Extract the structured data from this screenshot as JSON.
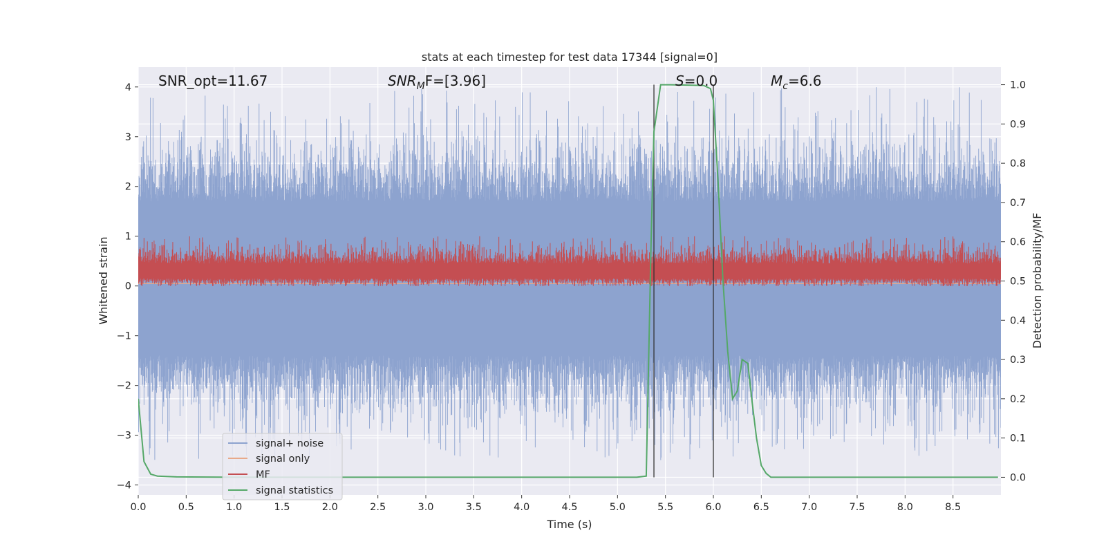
{
  "chart_data": {
    "type": "line",
    "title": "stats at each timestep for test data 17344 [signal=0]",
    "xlabel": "Time (s)",
    "ylabel_left": "Whitened strain",
    "ylabel_right": "Detection probability/MF",
    "xlim": [
      0.0,
      9.0
    ],
    "ylim_left": [
      -4.2,
      4.4
    ],
    "ylim_right": [
      -0.045,
      1.045
    ],
    "x_ticks": [
      "0.0",
      "0.5",
      "1.0",
      "1.5",
      "2.0",
      "2.5",
      "3.0",
      "3.5",
      "4.0",
      "4.5",
      "5.0",
      "5.5",
      "6.0",
      "6.5",
      "7.0",
      "7.5",
      "8.0",
      "8.5"
    ],
    "y_ticks_left": [
      "−4",
      "−3",
      "−2",
      "−1",
      "0",
      "1",
      "2",
      "3",
      "4"
    ],
    "y_ticks_right": [
      "0.0",
      "0.1",
      "0.2",
      "0.3",
      "0.4",
      "0.5",
      "0.6",
      "0.7",
      "0.8",
      "0.9",
      "1.0"
    ],
    "grid": true,
    "background_color": "#eaeaf2",
    "annotations": [
      {
        "id": "snr-opt",
        "text": "SNR_opt=11.67"
      },
      {
        "id": "snr-mf",
        "text": "SNR",
        "sub": "M",
        "suffix": "F=[3.96]"
      },
      {
        "id": "s-value",
        "text": "S",
        "suffix": "=0.0"
      },
      {
        "id": "mc-value",
        "text": "M",
        "sub": "c",
        "suffix": "=6.6"
      }
    ],
    "vertical_lines_x": [
      5.38,
      6.0
    ],
    "legend": {
      "placement": "lower-left",
      "entries": [
        {
          "label": "signal+ noise",
          "color": "#8da3cf"
        },
        {
          "label": "signal only",
          "color": "#e8a98a"
        },
        {
          "label": "MF",
          "color": "#c44e52"
        },
        {
          "label": "signal statistics",
          "color": "#55a868"
        }
      ]
    },
    "series": [
      {
        "name": "signal+ noise",
        "axis": "left",
        "style": "dense noise band",
        "color": "#8da3cf",
        "typical_range": [
          -1.4,
          1.7
        ],
        "peak_range": [
          -3.5,
          4.0
        ]
      },
      {
        "name": "signal only",
        "axis": "left",
        "color": "#e8a98a",
        "constant_value": 0.05
      },
      {
        "name": "MF",
        "axis": "left",
        "style": "dense noise band",
        "color": "#c44e52",
        "typical_range": [
          0.05,
          0.75
        ],
        "peak_range": [
          0.0,
          1.0
        ]
      },
      {
        "name": "signal statistics",
        "axis": "right",
        "color": "#55a868",
        "points": [
          [
            0.0,
            0.2
          ],
          [
            0.06,
            0.04
          ],
          [
            0.13,
            0.008
          ],
          [
            0.2,
            0.003
          ],
          [
            0.4,
            0.001
          ],
          [
            1.0,
            0.0
          ],
          [
            3.0,
            0.0
          ],
          [
            5.2,
            0.0
          ],
          [
            5.3,
            0.003
          ],
          [
            5.35,
            0.6
          ],
          [
            5.38,
            0.88
          ],
          [
            5.45,
            1.0
          ],
          [
            5.55,
            1.0
          ],
          [
            5.9,
            0.998
          ],
          [
            5.97,
            0.99
          ],
          [
            6.0,
            0.96
          ],
          [
            6.05,
            0.75
          ],
          [
            6.1,
            0.5
          ],
          [
            6.15,
            0.32
          ],
          [
            6.2,
            0.2
          ],
          [
            6.25,
            0.22
          ],
          [
            6.3,
            0.3
          ],
          [
            6.36,
            0.29
          ],
          [
            6.4,
            0.2
          ],
          [
            6.45,
            0.1
          ],
          [
            6.5,
            0.03
          ],
          [
            6.55,
            0.01
          ],
          [
            6.6,
            0.0
          ],
          [
            7.0,
            0.0
          ],
          [
            8.97,
            0.0
          ]
        ]
      }
    ]
  }
}
